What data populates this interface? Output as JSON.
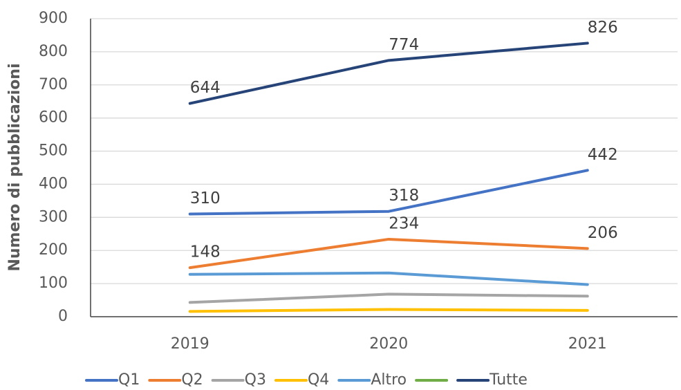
{
  "chart_data": {
    "type": "line",
    "y_label": "Numero di pubblicazioni",
    "categories": [
      "2019",
      "2020",
      "2021"
    ],
    "series": [
      {
        "name": "Q1",
        "color": "#4472c4",
        "values": [
          310,
          318,
          442
        ],
        "data_labels": true
      },
      {
        "name": "Q2",
        "color": "#ed7d31",
        "values": [
          148,
          234,
          206
        ],
        "data_labels": true
      },
      {
        "name": "Q3",
        "color": "#a5a5a5",
        "values": [
          43,
          68,
          62
        ],
        "data_labels": false
      },
      {
        "name": "Q4",
        "color": "#ffc000",
        "values": [
          16,
          22,
          19
        ],
        "data_labels": false
      },
      {
        "name": "Altro",
        "color": "#5b9bd5",
        "values": [
          128,
          132,
          97
        ],
        "data_labels": false
      },
      {
        "name": null,
        "color": "#70ad47",
        "values": [
          null,
          null,
          null
        ],
        "data_labels": false
      },
      {
        "name": "Tutte",
        "color": "#264478",
        "values": [
          644,
          774,
          826
        ],
        "data_labels": true
      }
    ],
    "ylim": [
      0,
      900
    ],
    "yticks": [
      0,
      100,
      200,
      300,
      400,
      500,
      600,
      700,
      800,
      900
    ],
    "grid": true,
    "legend": "bottom"
  }
}
